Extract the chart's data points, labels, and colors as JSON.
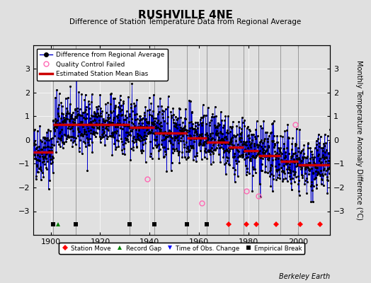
{
  "title": "RUSHVILLE 4NE",
  "subtitle": "Difference of Station Temperature Data from Regional Average",
  "ylabel": "Monthly Temperature Anomaly Difference (°C)",
  "xlim": [
    1893,
    2013
  ],
  "ylim": [
    -4,
    4
  ],
  "xticks": [
    1900,
    1920,
    1940,
    1960,
    1980,
    2000
  ],
  "yticks": [
    -3,
    -2,
    -1,
    0,
    1,
    2,
    3
  ],
  "bg_color": "#e0e0e0",
  "plot_bg_color": "#e0e0e0",
  "seed": 42,
  "start_year": 1893,
  "end_year": 2013,
  "bias_segments": [
    {
      "x_start": 1893,
      "x_end": 1901,
      "bias": -0.5
    },
    {
      "x_start": 1901,
      "x_end": 1910,
      "bias": 0.65
    },
    {
      "x_start": 1910,
      "x_end": 1932,
      "bias": 0.65
    },
    {
      "x_start": 1932,
      "x_end": 1942,
      "bias": 0.55
    },
    {
      "x_start": 1942,
      "x_end": 1955,
      "bias": 0.3
    },
    {
      "x_start": 1955,
      "x_end": 1963,
      "bias": 0.1
    },
    {
      "x_start": 1963,
      "x_end": 1972,
      "bias": -0.1
    },
    {
      "x_start": 1972,
      "x_end": 1978,
      "bias": -0.3
    },
    {
      "x_start": 1978,
      "x_end": 1984,
      "bias": -0.45
    },
    {
      "x_start": 1984,
      "x_end": 1993,
      "bias": -0.65
    },
    {
      "x_start": 1993,
      "x_end": 2000,
      "bias": -0.9
    },
    {
      "x_start": 2000,
      "x_end": 2013,
      "bias": -1.05
    }
  ],
  "vertical_lines": [
    1901,
    1910,
    1932,
    1942,
    1955,
    1963,
    1972,
    1978,
    1984,
    1993,
    2000
  ],
  "station_moves": [
    1972,
    1979,
    1983,
    1991,
    2001,
    2009
  ],
  "record_gaps": [
    1903
  ],
  "obs_changes": [
    1955,
    1963
  ],
  "empirical_breaks": [
    1901,
    1910,
    1932,
    1942,
    1955,
    1963
  ],
  "qc_failed_approx": [
    {
      "year": 1939,
      "val": -1.65
    },
    {
      "year": 1961,
      "val": -2.65
    },
    {
      "year": 1979,
      "val": -2.15
    },
    {
      "year": 1984,
      "val": -2.35
    },
    {
      "year": 1999,
      "val": 0.65
    }
  ],
  "berkeley_earth_text": "Berkeley Earth",
  "line_color": "#0000cc",
  "dot_color": "#000000",
  "bias_line_color": "#cc0000",
  "vline_color": "#999999",
  "qc_color": "#ff69b4"
}
